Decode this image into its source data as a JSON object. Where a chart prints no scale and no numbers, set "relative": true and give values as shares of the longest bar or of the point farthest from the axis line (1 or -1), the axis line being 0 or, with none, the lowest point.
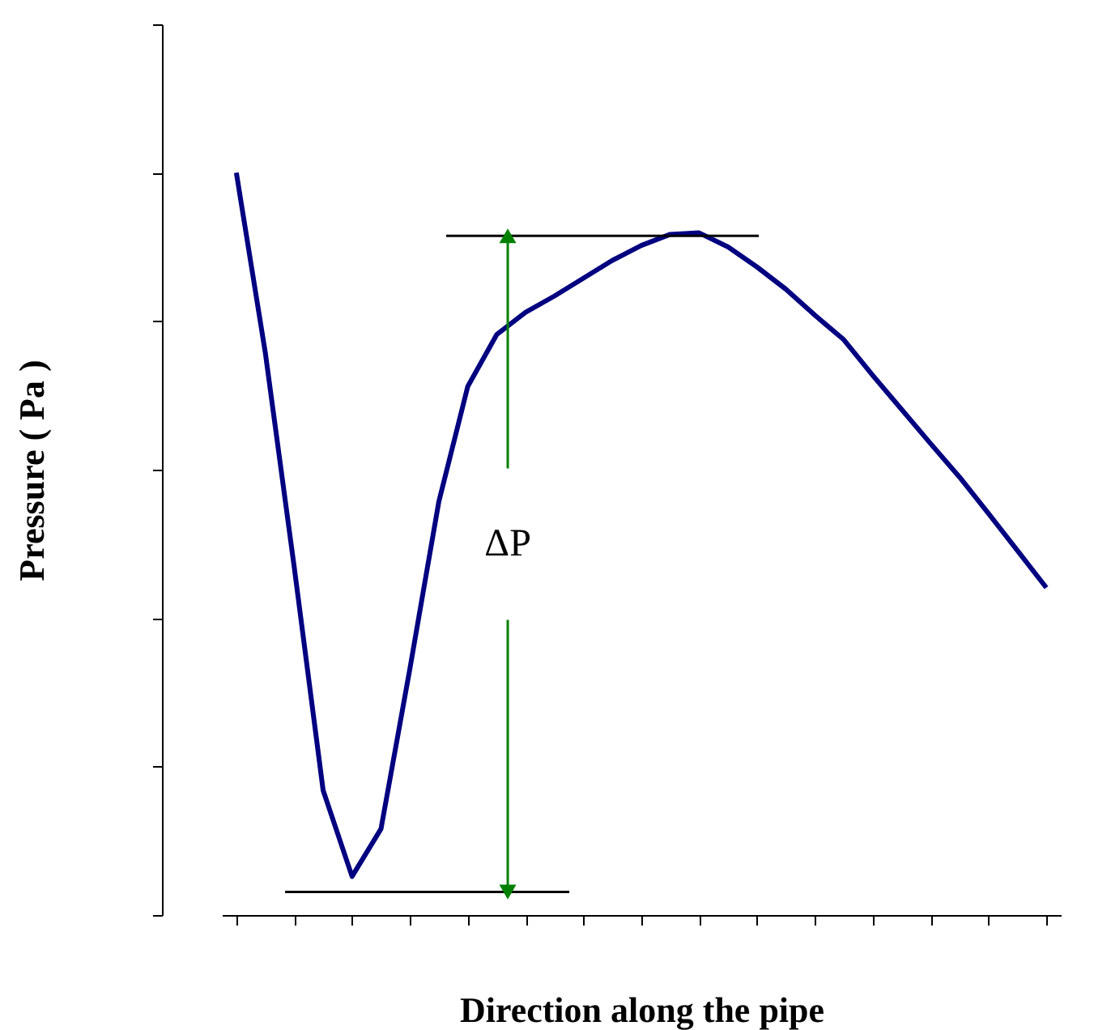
{
  "chart_data": {
    "type": "line",
    "relative": true,
    "xlabel": "Direction along the pipe",
    "ylabel": "Pressure ( Pa )",
    "categories": [
      null,
      null,
      null,
      null,
      null,
      null,
      null,
      null,
      null,
      null,
      null,
      null,
      null,
      null,
      null,
      null,
      null,
      null,
      null,
      null,
      null,
      null,
      null,
      null,
      null,
      null,
      null,
      null,
      null
    ],
    "tick_labels": false,
    "grid": false,
    "series": [
      {
        "color": "#000080",
        "values": [
          1.0,
          0.758,
          0.469,
          0.168,
          0.052,
          0.116,
          0.332,
          0.557,
          0.712,
          0.782,
          0.812,
          0.834,
          0.858,
          0.882,
          0.902,
          0.917,
          0.919,
          0.9,
          0.873,
          0.843,
          0.808,
          0.775,
          0.727,
          0.681,
          0.635,
          0.59,
          0.541,
          0.491,
          0.441
        ]
      }
    ],
    "ref_lines": [
      {
        "axis": "y",
        "value": 0.031,
        "color": "#000000"
      },
      {
        "axis": "y",
        "value": 0.915,
        "color": "#000000"
      }
    ],
    "annotations": [
      "ΔP"
    ]
  }
}
